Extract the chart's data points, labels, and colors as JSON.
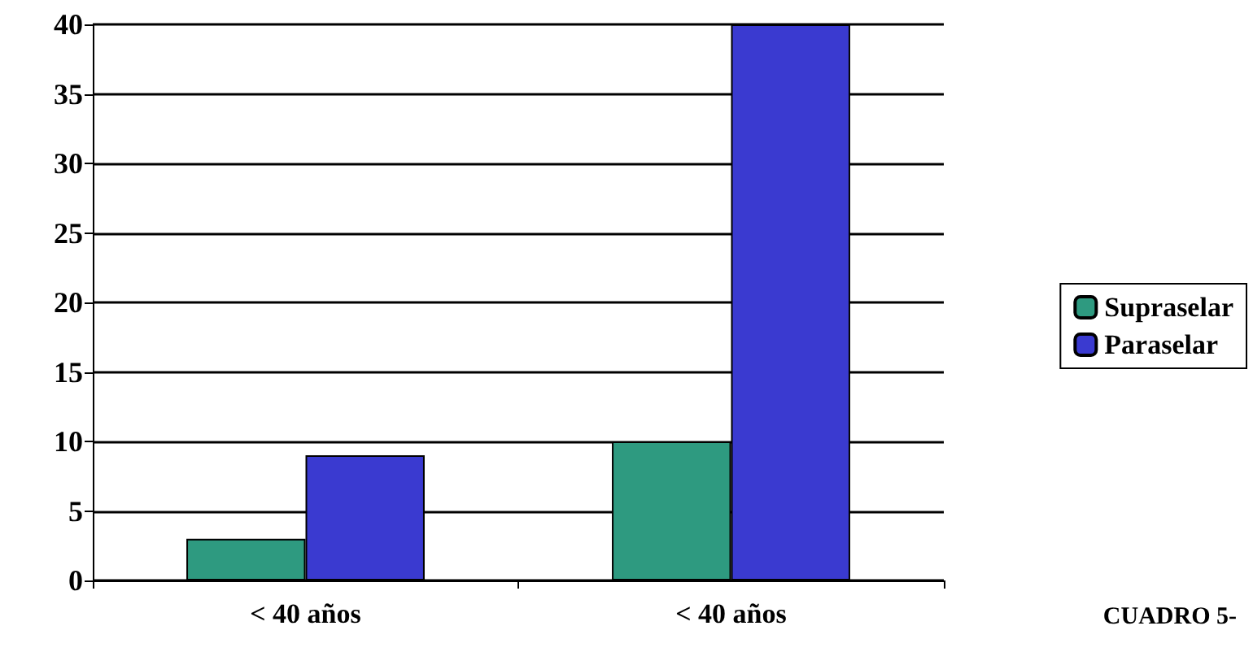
{
  "chart_data": {
    "type": "bar",
    "categories": [
      "< 40 años",
      "< 40 años"
    ],
    "series": [
      {
        "name": "Supraselar",
        "color": "#2e9a80",
        "values": [
          3,
          10
        ]
      },
      {
        "name": "Paraselar",
        "color": "#3a3ad0",
        "values": [
          9,
          40
        ]
      }
    ],
    "ylim": [
      0,
      40
    ],
    "yticks": [
      0,
      5,
      10,
      15,
      20,
      25,
      30,
      35,
      40
    ],
    "grid": "y",
    "legend": "right",
    "annotations": [
      "CUADRO 5-"
    ]
  }
}
